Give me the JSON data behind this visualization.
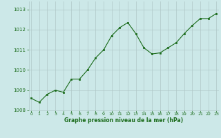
{
  "x": [
    0,
    1,
    2,
    3,
    4,
    5,
    6,
    7,
    8,
    9,
    10,
    11,
    12,
    13,
    14,
    15,
    16,
    17,
    18,
    19,
    20,
    21,
    22,
    23
  ],
  "y": [
    1008.6,
    1008.4,
    1008.8,
    1009.0,
    1008.9,
    1009.55,
    1009.55,
    1010.0,
    1010.6,
    1011.0,
    1011.7,
    1012.1,
    1012.35,
    1011.8,
    1011.1,
    1010.8,
    1010.85,
    1011.1,
    1011.35,
    1011.8,
    1012.2,
    1012.55,
    1012.55,
    1012.8
  ],
  "line_color": "#1a6b1a",
  "marker_color": "#1a6b1a",
  "bg_color": "#cce8e8",
  "grid_color": "#b0c8c8",
  "xlabel": "Graphe pression niveau de la mer (hPa)",
  "xlabel_color": "#1a6b1a",
  "tick_color": "#1a6b1a",
  "ylim": [
    1008.0,
    1013.4
  ],
  "yticks": [
    1008,
    1009,
    1010,
    1011,
    1012,
    1013
  ],
  "xticks": [
    0,
    1,
    2,
    3,
    4,
    5,
    6,
    7,
    8,
    9,
    10,
    11,
    12,
    13,
    14,
    15,
    16,
    17,
    18,
    19,
    20,
    21,
    22,
    23
  ],
  "figsize": [
    3.2,
    2.0
  ],
  "dpi": 100
}
